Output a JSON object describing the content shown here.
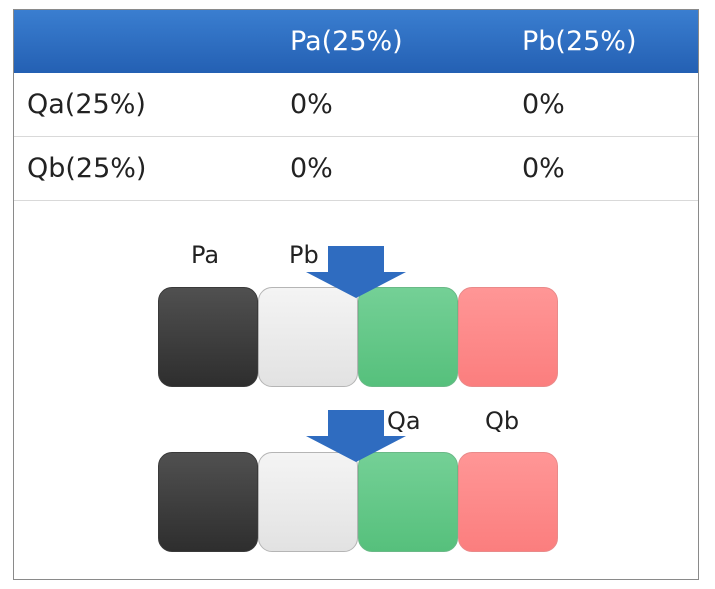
{
  "table": {
    "columns": [
      "",
      "Pa(25%)",
      "Pb(25%)"
    ],
    "rows": [
      {
        "label": "Qa(25%)",
        "cells": [
          "0%",
          "0%"
        ]
      },
      {
        "label": "Qb(25%)",
        "cells": [
          "0%",
          "0%"
        ]
      }
    ]
  },
  "diagram": {
    "top_labels": [
      "Pa",
      "Pb"
    ],
    "bottom_labels": [
      "Qa",
      "Qb"
    ],
    "tile_colors": [
      "#3c3c3c",
      "#eaeaea",
      "#63c585",
      "#fd8888"
    ],
    "arrow_color": "#2f6cc0"
  }
}
